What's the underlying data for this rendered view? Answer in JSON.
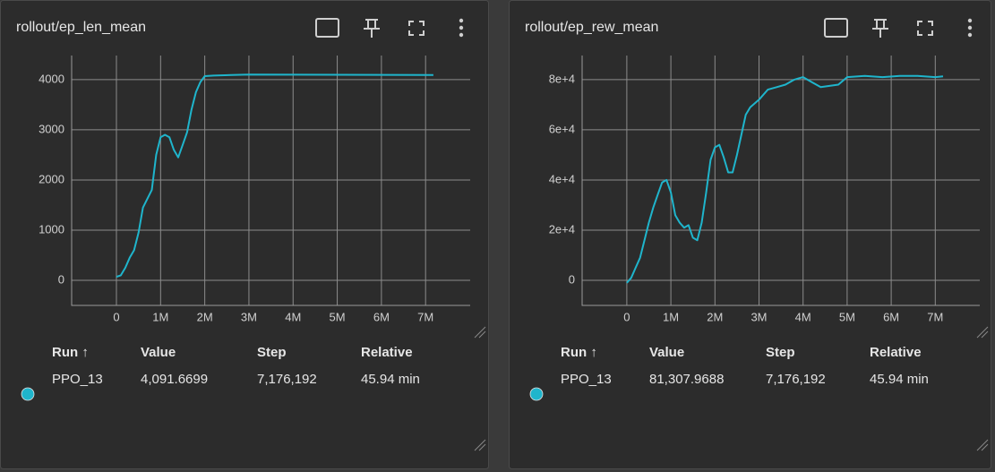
{
  "chart_data": [
    {
      "type": "line",
      "title": "rollout/ep_len_mean",
      "x": [
        0,
        100000,
        200000,
        300000,
        400000,
        500000,
        600000,
        800000,
        900000,
        1000000,
        1100000,
        1200000,
        1300000,
        1400000,
        1500000,
        1600000,
        1700000,
        1800000,
        1900000,
        2000000,
        2200000,
        2600000,
        3000000,
        7176192
      ],
      "series": [
        {
          "name": "PPO_13",
          "color": "#1fb5cc",
          "values": [
            70,
            100,
            250,
            450,
            600,
            950,
            1450,
            1800,
            2500,
            2850,
            2900,
            2850,
            2600,
            2450,
            2700,
            2950,
            3400,
            3750,
            3950,
            4070,
            4080,
            4090,
            4100,
            4091.6699
          ]
        }
      ],
      "xlim": [
        -1014000,
        8010000
      ],
      "xticks": [
        {
          "value": 0,
          "label": "0"
        },
        {
          "value": 1000000,
          "label": "1M"
        },
        {
          "value": 2000000,
          "label": "2M"
        },
        {
          "value": 3000000,
          "label": "3M"
        },
        {
          "value": 4000000,
          "label": "4M"
        },
        {
          "value": 5000000,
          "label": "5M"
        },
        {
          "value": 6000000,
          "label": "6M"
        },
        {
          "value": 7000000,
          "label": "7M"
        }
      ],
      "ylim": [
        -500,
        4480
      ],
      "yticks": [
        0,
        1000,
        2000,
        3000,
        4000
      ],
      "grid": true,
      "table": {
        "headers": [
          "Run ↑",
          "Value",
          "Step",
          "Relative"
        ],
        "row": [
          "4,091.6699",
          "7,176,192",
          "45.94 min"
        ]
      }
    },
    {
      "type": "line",
      "title": "rollout/ep_rew_mean",
      "x": [
        0,
        100000,
        200000,
        300000,
        400000,
        500000,
        600000,
        700000,
        800000,
        900000,
        1000000,
        1100000,
        1200000,
        1300000,
        1400000,
        1500000,
        1600000,
        1700000,
        1800000,
        1900000,
        2000000,
        2100000,
        2200000,
        2300000,
        2400000,
        2500000,
        2600000,
        2700000,
        2800000,
        3000000,
        3200000,
        3400000,
        3600000,
        3800000,
        4000000,
        4200000,
        4400000,
        4600000,
        4800000,
        5000000,
        5400000,
        5800000,
        6200000,
        6600000,
        7000000,
        7176192
      ],
      "series": [
        {
          "name": "PPO_13",
          "color": "#1fb5cc",
          "values": [
            -1000,
            1000,
            5000,
            9000,
            16000,
            23000,
            29000,
            34000,
            39000,
            40000,
            35000,
            26000,
            23000,
            21000,
            22000,
            17000,
            16000,
            23000,
            35000,
            48000,
            53000,
            54000,
            49000,
            43000,
            43000,
            50000,
            58000,
            66000,
            69000,
            72000,
            76000,
            77000,
            78000,
            80000,
            81000,
            79000,
            77000,
            77500,
            78000,
            81000,
            81500,
            81000,
            81500,
            81500,
            81000,
            81307.9688
          ]
        }
      ],
      "xlim": [
        -1014000,
        8010000
      ],
      "xticks": [
        {
          "value": 0,
          "label": "0"
        },
        {
          "value": 1000000,
          "label": "1M"
        },
        {
          "value": 2000000,
          "label": "2M"
        },
        {
          "value": 3000000,
          "label": "3M"
        },
        {
          "value": 4000000,
          "label": "4M"
        },
        {
          "value": 5000000,
          "label": "5M"
        },
        {
          "value": 6000000,
          "label": "6M"
        },
        {
          "value": 7000000,
          "label": "7M"
        }
      ],
      "ylim": [
        -10000,
        89600
      ],
      "yticks": [
        0,
        {
          "value": 20000,
          "label": "2e+4"
        },
        {
          "value": 40000,
          "label": "4e+4"
        },
        {
          "value": 60000,
          "label": "6e+4"
        },
        {
          "value": 80000,
          "label": "8e+4"
        }
      ],
      "grid": true,
      "table": {
        "headers": [
          "Run ↑",
          "Value",
          "Step",
          "Relative"
        ],
        "row": [
          "81,307.9688",
          "7,176,192",
          "45.94 min"
        ]
      }
    }
  ]
}
